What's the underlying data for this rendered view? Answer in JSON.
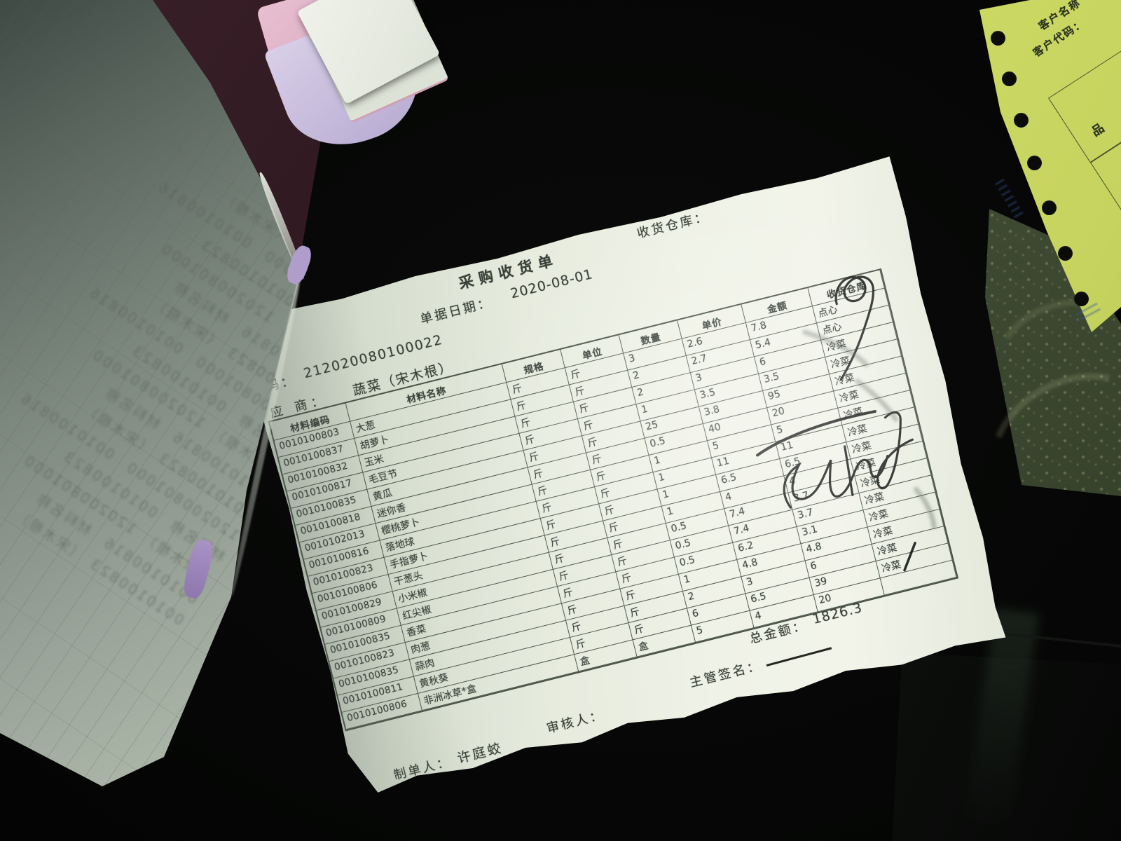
{
  "receipt": {
    "title": "采购收货单",
    "top_warehouse_label": "收货仓库：",
    "date_label": "单据日期：",
    "date_value": "2020-08-01",
    "doc_code_label": "码：",
    "doc_code_value": "212020080100022",
    "supplier_label": "应 商：",
    "supplier_value": "蔬菜（宋木根）",
    "table": {
      "headers": [
        "材料编码",
        "材料名称",
        "规格",
        "单位",
        "数量",
        "单价",
        "金额",
        "收货仓库"
      ],
      "rows": [
        [
          "0010100803",
          "大葱",
          "斤",
          "斤",
          "3",
          "2.6",
          "7.8",
          "点心"
        ],
        [
          "0010100837",
          "胡萝卜",
          "斤",
          "斤",
          "2",
          "2.7",
          "5.4",
          "点心"
        ],
        [
          "0010100832",
          "玉米",
          "斤",
          "斤",
          "2",
          "3",
          "6",
          "冷菜"
        ],
        [
          "0010100817",
          "毛豆节",
          "斤",
          "斤",
          "1",
          "3.5",
          "3.5",
          "冷菜"
        ],
        [
          "0010100835",
          "黄瓜",
          "斤",
          "斤",
          "25",
          "3.8",
          "95",
          "冷菜"
        ],
        [
          "0010100818",
          "迷你香",
          "斤",
          "斤",
          "0.5",
          "40",
          "20",
          "冷菜"
        ],
        [
          "0010102013",
          "樱桃萝卜",
          "斤",
          "斤",
          "1",
          "5",
          "5",
          "冷菜"
        ],
        [
          "0010100816",
          "落地球",
          "斤",
          "斤",
          "1",
          "11",
          "11",
          "冷菜"
        ],
        [
          "0010100823",
          "手指萝卜",
          "斤",
          "斤",
          "1",
          "6.5",
          "6.5",
          "冷菜"
        ],
        [
          "0010100806",
          "干葱头",
          "斤",
          "斤",
          "1",
          "4",
          "4",
          "冷菜"
        ],
        [
          "0010100829",
          "小米椒",
          "斤",
          "斤",
          "0.5",
          "7.4",
          "3.7",
          "冷菜"
        ],
        [
          "0010100809",
          "红尖椒",
          "斤",
          "斤",
          "0.5",
          "7.4",
          "3.7",
          "冷菜"
        ],
        [
          "0010100835",
          "香菜",
          "斤",
          "斤",
          "0.5",
          "6.2",
          "3.1",
          "冷菜"
        ],
        [
          "0010100823",
          "肉葱",
          "斤",
          "斤",
          "1",
          "4.8",
          "4.8",
          "冷菜"
        ],
        [
          "0010100835",
          "蒜肉",
          "斤",
          "斤",
          "2",
          "3",
          "6",
          "冷菜"
        ],
        [
          "0010100811",
          "黄秋葵",
          "斤",
          "斤",
          "6",
          "6.5",
          "39",
          "冷菜"
        ],
        [
          "0010100806",
          "非洲冰草*盒",
          "盒",
          "盒",
          "5",
          "4",
          "20",
          ""
        ]
      ]
    },
    "total_label": "总金额：",
    "total_value": "1826.3",
    "manager_sign_label": "主管签名：",
    "auditor_label": "审核人：",
    "preparer_label": "制单人：",
    "preparer_value": "许庭蛟",
    "paper_color": "#edf1e5",
    "ink_print_color": "#3a4138",
    "handwriting_ink_color": "#191b18"
  },
  "yellow_form": {
    "customer_name_label": "客户名称",
    "customer_code_label": "客户代码：",
    "column_header": "品",
    "paper_color": "#c8d75f",
    "stamp_color": "#3d5fa0"
  },
  "flipped_pages": {
    "showthrough_fragments": [
      "0010100823",
      "120200801000",
      "材料名称",
      "（宋木根）",
      "0010100816"
    ],
    "front_color": "#aab4a7",
    "pink_sheet_color": "#dfb6c9",
    "lavender_sheet_color": "#c9bedd",
    "white_sheet_color": "#eef0e8",
    "purple_edge_color": "#ab96c9"
  },
  "scene": {
    "desk_color": "#070807",
    "maroon_shadow_color": "#30181f",
    "olive_board_color": "#45503a"
  }
}
